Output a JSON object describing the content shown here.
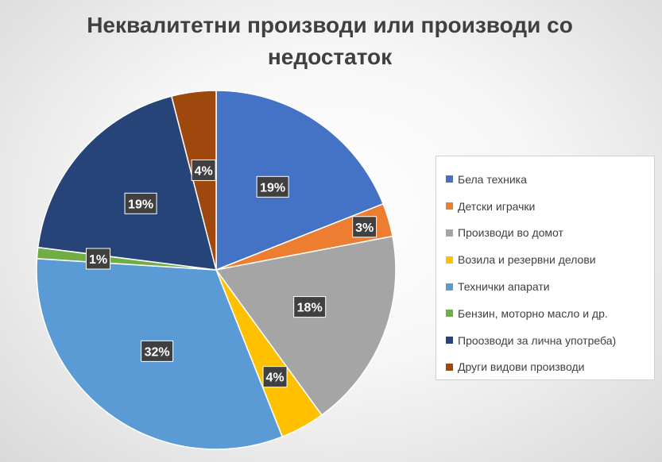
{
  "chart_data": {
    "type": "pie",
    "title": "Неквалитетни производи или производи со недостаток",
    "legend_position": "right",
    "categories": [
      "Бела техника",
      "Детски играчки",
      "Производи во домот",
      "Возила и резервни делови",
      "Технички апарати",
      "Бензин, моторно масло и др.",
      "Проозводи за лична употреба)",
      "Други видови производи"
    ],
    "values": [
      19,
      3,
      18,
      4,
      32,
      1,
      19,
      4
    ],
    "labels": [
      "19%",
      "3%",
      "18%",
      "4%",
      "32%",
      "1%",
      "19%",
      "4%"
    ],
    "colors": [
      "#4472C4",
      "#ED7D31",
      "#A5A5A5",
      "#FFC000",
      "#5B9BD5",
      "#70AD47",
      "#264478",
      "#9E480E"
    ]
  }
}
